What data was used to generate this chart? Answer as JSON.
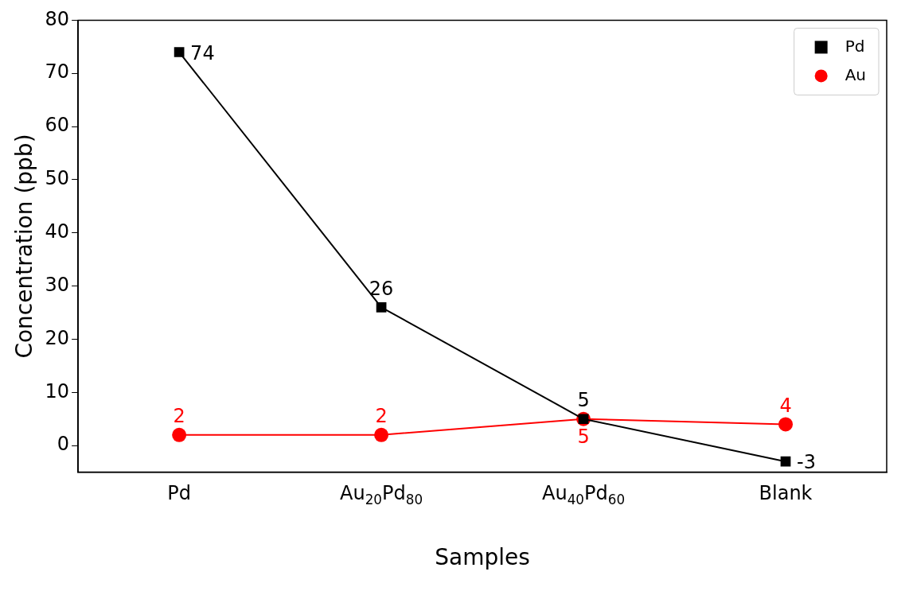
{
  "chart_data": {
    "type": "line",
    "xlabel": "Samples",
    "ylabel": "Concentration (ppb)",
    "categories": [
      "Pd",
      "Au$_{20}$Pd$_{80}$",
      "Au$_{40}$Pd$_{60}$",
      "Blank"
    ],
    "series": [
      {
        "name": "Pd",
        "color": "#000000",
        "values": [
          74,
          26,
          5,
          -3
        ],
        "marker": "square"
      },
      {
        "name": "Au",
        "color": "#ff0000",
        "values": [
          2,
          2,
          5,
          4
        ],
        "marker": "circle"
      }
    ],
    "ylim": [
      -5,
      80
    ],
    "yticks": [
      0,
      10,
      20,
      30,
      40,
      50,
      60,
      70,
      80
    ],
    "grid": false,
    "legend": "top right",
    "data_labels": true,
    "line_style": "solid"
  }
}
